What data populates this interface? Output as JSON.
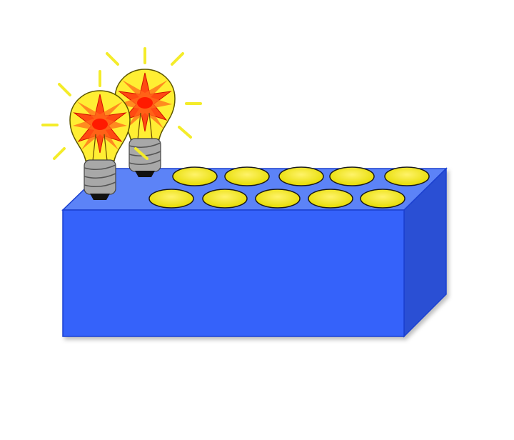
{
  "colors": {
    "background": "#ffffff",
    "block_front": "#3562fa",
    "block_top": "#5b83f7",
    "block_side": "#2a50d4",
    "block_edge": "#1a3fd0",
    "socket_fill": "#f2ea00",
    "socket_stroke": "#1a1a1a",
    "bulb_glass": "#ffee33",
    "bulb_glow": "#ff4a12",
    "bulb_core": "#ff1a00",
    "bulb_base": "#a8a8a8",
    "bulb_tip": "#111111",
    "ray": "#f4ec2a"
  },
  "scene": {
    "block_name": "sockets-block",
    "socket_rows": [
      5,
      5
    ],
    "bulb_count": 2,
    "bulbs_state": "lit"
  }
}
